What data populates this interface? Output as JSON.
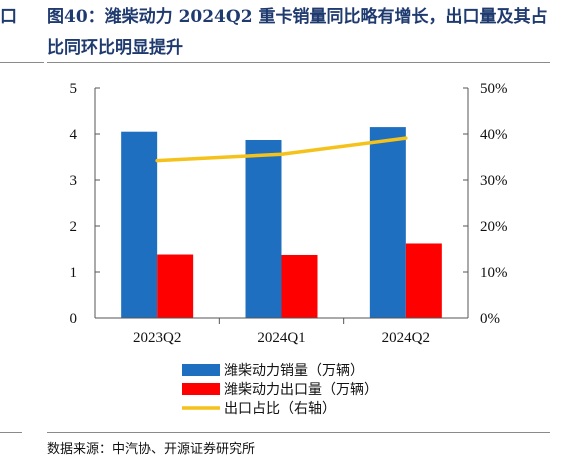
{
  "header": {
    "left_mark": "口",
    "title": "图40：潍柴动力 2024Q2 重卡销量同比略有增长，出口量及其占比同环比明显提升"
  },
  "footer": {
    "source": "数据来源：中汽协、开源证券研究所"
  },
  "chart_data": {
    "type": "bar",
    "title": "",
    "categories": [
      "2023Q2",
      "2024Q1",
      "2024Q2"
    ],
    "series": [
      {
        "name": "潍柴动力销量（万辆）",
        "kind": "bar",
        "axis": "left",
        "color": "#1f6fc0",
        "values": [
          4.05,
          3.87,
          4.15
        ]
      },
      {
        "name": "潍柴动力出口量（万辆）",
        "kind": "bar",
        "axis": "left",
        "color": "#ff0000",
        "values": [
          1.38,
          1.37,
          1.62
        ]
      },
      {
        "name": "出口占比（右轴）",
        "kind": "line",
        "axis": "right",
        "color": "#f5c21b",
        "values": [
          34.2,
          35.6,
          39.1
        ]
      }
    ],
    "left_axis": {
      "ylim": [
        0,
        5
      ],
      "ticks": [
        "0",
        "1",
        "2",
        "3",
        "4",
        "5"
      ]
    },
    "right_axis": {
      "ylim": [
        0,
        50
      ],
      "ticks": [
        "0%",
        "10%",
        "20%",
        "30%",
        "40%",
        "50%"
      ]
    },
    "legend_position": "bottom",
    "grid": false
  }
}
